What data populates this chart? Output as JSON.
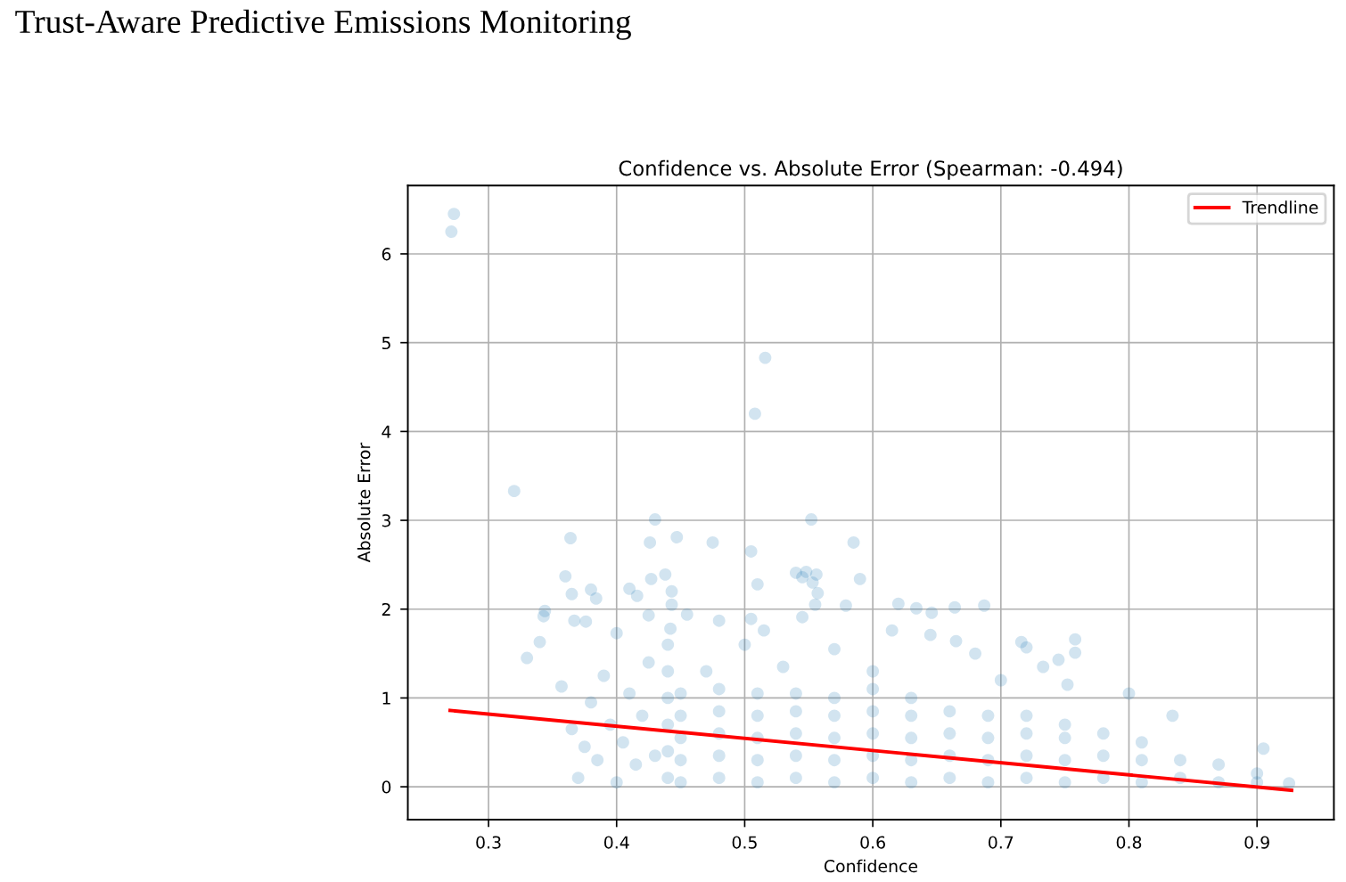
{
  "chart_data": {
    "type": "scatter",
    "title": "Trust-Aware Predictive Emissions Monitoring",
    "subtitle": "Confidence vs. Absolute Error (Spearman: -0.494)",
    "xlabel": "Confidence",
    "ylabel": "Absolute Error",
    "xlim": [
      0.237,
      0.96
    ],
    "ylim": [
      -0.37,
      6.77
    ],
    "xticks": [
      0.3,
      0.4,
      0.5,
      0.6,
      0.7,
      0.8,
      0.9
    ],
    "yticks": [
      0,
      1,
      2,
      3,
      4,
      5,
      6
    ],
    "grid": true,
    "legend": "top right",
    "marker": "circle",
    "series": [
      {
        "color": "#1f77b4",
        "x": [
          0.271,
          0.273,
          0.508,
          0.516,
          0.32,
          0.33,
          0.343,
          0.344,
          0.34,
          0.36,
          0.364,
          0.365,
          0.367,
          0.357,
          0.376,
          0.38,
          0.384,
          0.4,
          0.41,
          0.416,
          0.425,
          0.427,
          0.426,
          0.43,
          0.438,
          0.443,
          0.447,
          0.443,
          0.455,
          0.475,
          0.48,
          0.505,
          0.51,
          0.505,
          0.515,
          0.54,
          0.545,
          0.548,
          0.553,
          0.552,
          0.556,
          0.557,
          0.545,
          0.555,
          0.585,
          0.59,
          0.579,
          0.62,
          0.634,
          0.646,
          0.664,
          0.687,
          0.615,
          0.645,
          0.665,
          0.716,
          0.72,
          0.733,
          0.758,
          0.758,
          0.745,
          0.752,
          0.8,
          0.834,
          0.905,
          0.5,
          0.53,
          0.57,
          0.6,
          0.7,
          0.47,
          0.68,
          0.365,
          0.37,
          0.375,
          0.38,
          0.385,
          0.39,
          0.395,
          0.4,
          0.405,
          0.41,
          0.415,
          0.42,
          0.425,
          0.43,
          0.44,
          0.44,
          0.44,
          0.44,
          0.44,
          0.44,
          0.442,
          0.45,
          0.45,
          0.45,
          0.45,
          0.45,
          0.48,
          0.48,
          0.48,
          0.48,
          0.48,
          0.51,
          0.51,
          0.51,
          0.51,
          0.51,
          0.54,
          0.54,
          0.54,
          0.54,
          0.54,
          0.57,
          0.57,
          0.57,
          0.57,
          0.57,
          0.6,
          0.6,
          0.6,
          0.6,
          0.6,
          0.63,
          0.63,
          0.63,
          0.63,
          0.63,
          0.66,
          0.66,
          0.66,
          0.66,
          0.69,
          0.69,
          0.69,
          0.69,
          0.72,
          0.72,
          0.72,
          0.72,
          0.75,
          0.75,
          0.75,
          0.75,
          0.78,
          0.78,
          0.78,
          0.81,
          0.81,
          0.81,
          0.84,
          0.84,
          0.87,
          0.87,
          0.9,
          0.9,
          0.925
        ],
        "values": [
          6.25,
          6.45,
          4.2,
          4.83,
          3.33,
          1.45,
          1.92,
          1.98,
          1.63,
          2.37,
          2.8,
          2.17,
          1.87,
          1.13,
          1.86,
          2.22,
          2.12,
          1.73,
          2.23,
          2.15,
          1.93,
          2.34,
          2.75,
          3.01,
          2.39,
          2.05,
          2.81,
          2.2,
          1.94,
          2.75,
          1.87,
          2.65,
          2.28,
          1.89,
          1.76,
          2.41,
          2.36,
          2.42,
          2.3,
          3.01,
          2.39,
          2.18,
          1.91,
          2.05,
          2.75,
          2.34,
          2.04,
          2.06,
          2.01,
          1.96,
          2.02,
          2.04,
          1.76,
          1.71,
          1.64,
          1.63,
          1.57,
          1.35,
          1.66,
          1.51,
          1.43,
          1.15,
          1.05,
          0.8,
          0.43,
          1.6,
          1.35,
          1.55,
          1.3,
          1.2,
          1.3,
          1.5,
          0.65,
          0.1,
          0.45,
          0.95,
          0.3,
          1.25,
          0.7,
          0.05,
          0.5,
          1.05,
          0.25,
          0.8,
          1.4,
          0.35,
          0.1,
          0.4,
          0.7,
          1.0,
          1.3,
          1.6,
          1.78,
          0.05,
          0.3,
          0.55,
          0.8,
          1.05,
          0.1,
          0.35,
          0.6,
          0.85,
          1.1,
          0.05,
          0.3,
          0.55,
          0.8,
          1.05,
          0.1,
          0.35,
          0.6,
          0.85,
          1.05,
          0.05,
          0.3,
          0.55,
          0.8,
          1.0,
          0.1,
          0.35,
          0.6,
          0.85,
          1.1,
          0.05,
          0.3,
          0.55,
          0.8,
          1.0,
          0.1,
          0.35,
          0.6,
          0.85,
          0.05,
          0.3,
          0.55,
          0.8,
          0.1,
          0.35,
          0.6,
          0.8,
          0.05,
          0.3,
          0.55,
          0.7,
          0.1,
          0.35,
          0.6,
          0.05,
          0.3,
          0.5,
          0.1,
          0.3,
          0.05,
          0.25,
          0.05,
          0.15,
          0.04
        ]
      },
      {
        "name": "Trendline",
        "type": "line",
        "color": "#ff0000",
        "marker": "none",
        "line_style": "solid",
        "x": [
          0.27,
          0.927
        ],
        "values": [
          0.86,
          -0.04
        ]
      }
    ]
  }
}
